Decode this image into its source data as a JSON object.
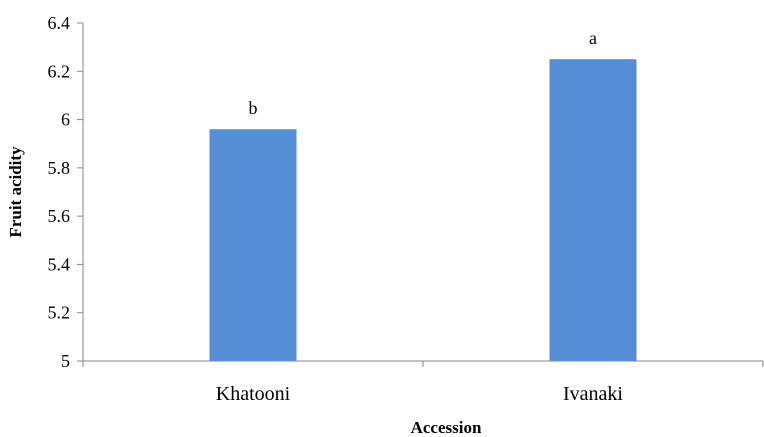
{
  "chart_data": {
    "type": "bar",
    "title": "",
    "xlabel": "Accession",
    "ylabel": "Fruit acidity",
    "categories": [
      "Khatooni",
      "Ivanaki"
    ],
    "values": [
      5.96,
      6.25
    ],
    "data_labels": [
      "b",
      "a"
    ],
    "ylim": [
      5,
      6.4
    ],
    "y_ticks": [
      5,
      5.2,
      5.4,
      5.6,
      5.8,
      6,
      6.2,
      6.4
    ],
    "y_tick_labels": [
      "5",
      "5.2",
      "5.4",
      "5.6",
      "5.8",
      "6",
      "6.2",
      "6.4"
    ],
    "grid": false,
    "legend": "none",
    "bar_color": "#558ed5"
  }
}
